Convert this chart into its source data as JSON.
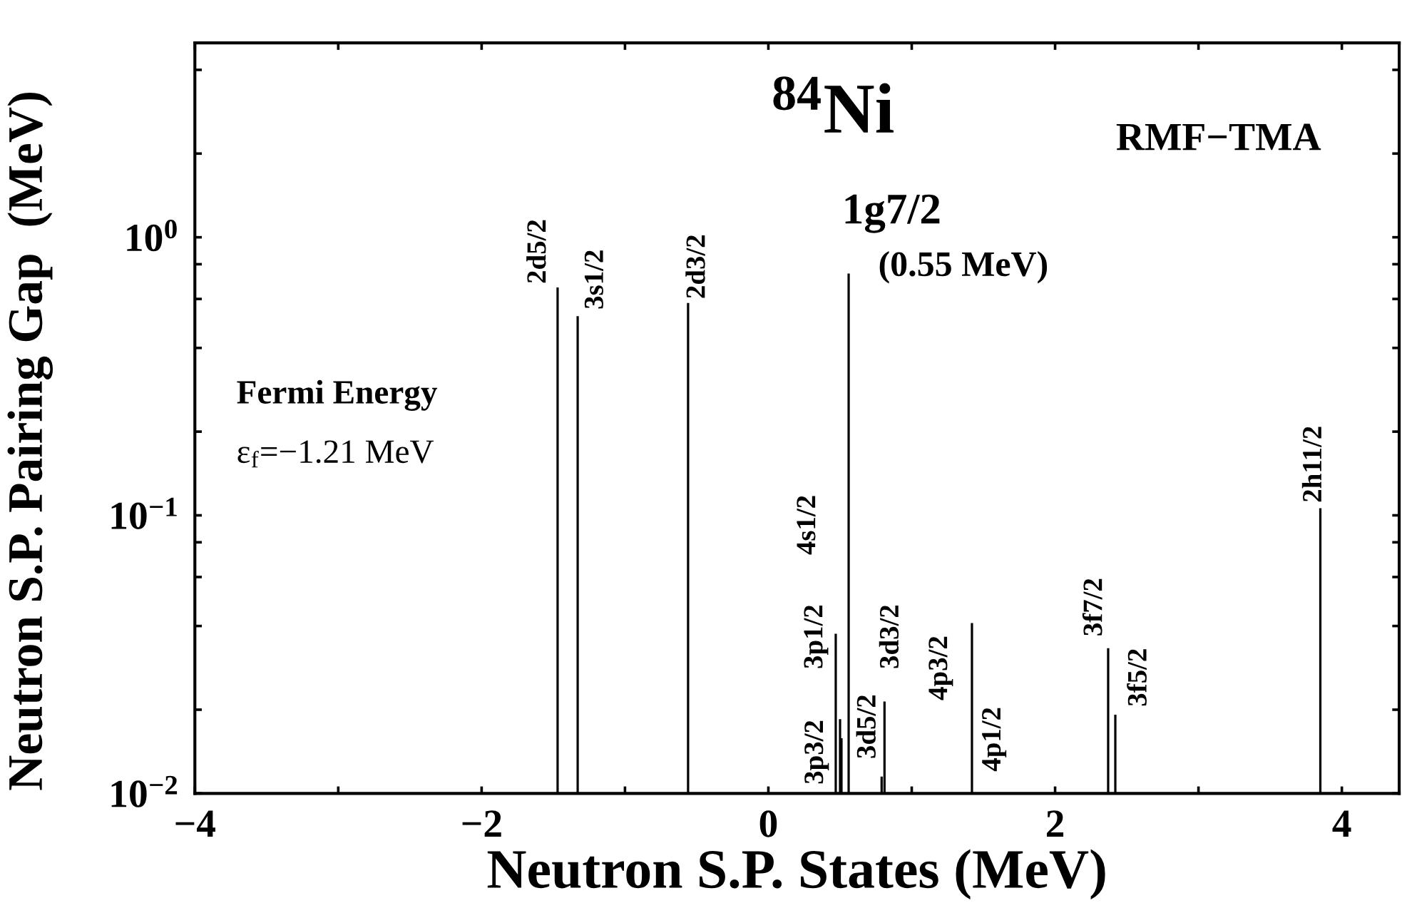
{
  "chart_data": {
    "type": "bar",
    "title": "$^{84}$Ni",
    "subtitle": "RMF−TMA",
    "xlabel": "Neutron S.P. States (MeV)",
    "ylabel": "Neutron S.P. Pairing Gap  (MeV)",
    "x": [
      -1.47,
      -1.33,
      -0.56,
      0.47,
      0.5,
      0.51,
      0.56,
      0.79,
      0.81,
      1.42,
      2.37,
      2.42,
      3.85
    ],
    "series": [
      {
        "color": "#000000",
        "values": [
          0.66,
          0.52,
          0.58,
          0.0375,
          0.0185,
          0.0158,
          0.74,
          0.0115,
          0.0214,
          0.041,
          0.0333,
          0.0192,
          0.106
        ]
      }
    ],
    "log": "y",
    "xlim": [
      -4,
      4.4
    ],
    "ylim": [
      0.01,
      5
    ],
    "xticks": [
      {
        "value": -4,
        "label": "−4"
      },
      {
        "value": -3,
        "label": null
      },
      {
        "value": -2,
        "label": "−2"
      },
      {
        "value": -1,
        "label": null
      },
      0,
      {
        "value": 1,
        "label": null
      },
      2,
      {
        "value": 3,
        "label": null
      },
      4
    ],
    "yticks": [
      {
        "value": 0.01,
        "label": "10$^{−2}$"
      },
      {
        "value": 0.02,
        "label": null
      },
      {
        "value": 0.04,
        "label": null
      },
      {
        "value": 0.06,
        "label": null
      },
      {
        "value": 0.08,
        "label": null
      },
      {
        "value": 0.1,
        "label": "10$^{−1}$"
      },
      {
        "value": 0.2,
        "label": null
      },
      {
        "value": 0.4,
        "label": null
      },
      {
        "value": 0.6,
        "label": null
      },
      {
        "value": 0.8,
        "label": null
      },
      {
        "value": 1,
        "label": "10$^{0}$"
      },
      {
        "value": 2,
        "label": null
      },
      {
        "value": 4,
        "label": null
      }
    ],
    "grid": false,
    "annotations": [
      "2d5/2",
      "3s1/2",
      "2d3/2",
      "4s1/2",
      "3p1/2",
      {
        "text": "3p3/2",
        "x": 0.5,
        "y": 0.0185
      },
      "3d5/2",
      "3d3/2",
      "4p3/2",
      {
        "text": "4p1/2",
        "x": 1.42,
        "y": 0.01
      },
      "3f7/2",
      "3f5/2",
      "2h11/2",
      "1g7/2",
      "(0.55 MeV)",
      "Fermi Energy",
      "ε$_{f}$=−1.21 MeV"
    ]
  }
}
